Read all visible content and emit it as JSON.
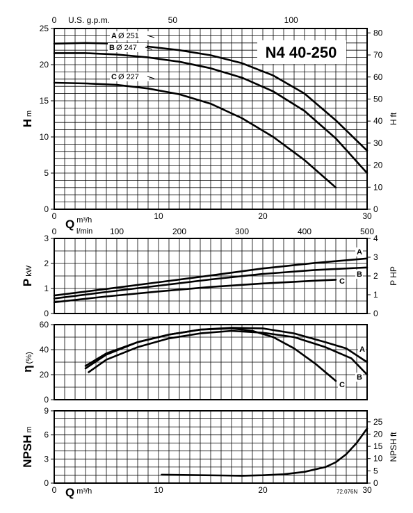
{
  "chart_data": [
    {
      "type": "line",
      "title": "N4 40-250",
      "ylabel": "H",
      "yunit": "m",
      "y2label": "H",
      "y2unit": "ft",
      "xlabel_top": "U.S. g.p.m.",
      "xlabel": "Q",
      "xunit": "m³/h",
      "xlim": [
        0,
        30
      ],
      "ylim": [
        0,
        25
      ],
      "y2lim": [
        0,
        82
      ],
      "x_ticks": [
        "0",
        "10",
        "20",
        "30"
      ],
      "y_ticks": [
        "0",
        "5",
        "10",
        "15",
        "20",
        "25"
      ],
      "y2_ticks": [
        "0",
        "10",
        "20",
        "30",
        "40",
        "50",
        "60",
        "70",
        "80"
      ],
      "x_top_ticks": [
        "50",
        "100"
      ],
      "grid": true,
      "series": [
        {
          "name": "A Ø 251",
          "label": "A",
          "diameter": "Ø 251",
          "x": [
            0,
            3,
            6,
            9,
            12,
            15,
            18,
            21,
            24,
            27,
            30
          ],
          "values": [
            22.9,
            23.0,
            22.9,
            22.5,
            22.0,
            21.3,
            20.2,
            18.5,
            16.0,
            12.3,
            8.1
          ]
        },
        {
          "name": "B Ø 247",
          "label": "B",
          "diameter": "Ø 247",
          "x": [
            0,
            3,
            6,
            9,
            12,
            15,
            18,
            21,
            24,
            27,
            30
          ],
          "values": [
            21.6,
            21.6,
            21.4,
            21.0,
            20.4,
            19.5,
            18.2,
            16.3,
            13.6,
            9.8,
            5.0
          ]
        },
        {
          "name": "C Ø 227",
          "label": "C",
          "diameter": "Ø 227",
          "x": [
            0,
            3,
            6,
            9,
            12,
            15,
            18,
            21,
            24,
            27
          ],
          "values": [
            17.5,
            17.4,
            17.2,
            16.7,
            15.9,
            14.6,
            12.6,
            10.0,
            6.8,
            3.0
          ]
        }
      ]
    },
    {
      "type": "line",
      "ylabel": "P",
      "yunit": "kW",
      "y2label": "P",
      "y2unit": "HP",
      "xlabel": "Q",
      "xunit": "l/min",
      "xlim": [
        0,
        500
      ],
      "ylim": [
        0,
        3
      ],
      "y2lim": [
        0,
        4
      ],
      "x_ticks": [
        "0",
        "100",
        "200",
        "300",
        "400",
        "500"
      ],
      "y_ticks": [
        "0",
        "1",
        "2",
        "3"
      ],
      "y2_ticks": [
        "0",
        "1",
        "2",
        "3",
        "4"
      ],
      "grid": true,
      "series": [
        {
          "name": "A",
          "x": [
            0,
            5,
            10,
            15,
            20,
            25,
            30
          ],
          "values": [
            0.72,
            0.98,
            1.25,
            1.52,
            1.8,
            2.02,
            2.2
          ]
        },
        {
          "name": "B",
          "x": [
            0,
            5,
            10,
            15,
            20,
            25,
            30
          ],
          "values": [
            0.6,
            0.86,
            1.11,
            1.36,
            1.58,
            1.74,
            1.84
          ]
        },
        {
          "name": "C",
          "x": [
            0,
            5,
            10,
            15,
            20,
            25,
            27
          ],
          "values": [
            0.45,
            0.68,
            0.88,
            1.06,
            1.2,
            1.31,
            1.35
          ]
        }
      ]
    },
    {
      "type": "line",
      "ylabel": "η",
      "yunit": "(%)",
      "ylim": [
        0,
        60
      ],
      "xlim": [
        0,
        30
      ],
      "y_ticks": [
        "0",
        "20",
        "40",
        "60"
      ],
      "grid": true,
      "series": [
        {
          "name": "A",
          "x": [
            3,
            5,
            8,
            11,
            14,
            17,
            20,
            23,
            26,
            28,
            30
          ],
          "values": [
            27,
            37,
            46,
            52,
            56,
            57.5,
            57,
            53,
            46,
            41,
            30
          ]
        },
        {
          "name": "B",
          "x": [
            3.3,
            5,
            8,
            11,
            14,
            17,
            20,
            23,
            26,
            28.5,
            30
          ],
          "values": [
            22,
            32,
            42,
            49,
            53,
            55,
            53.5,
            50,
            42,
            33,
            20
          ]
        },
        {
          "name": "C",
          "x": [
            3,
            5,
            8,
            11,
            14,
            17,
            19,
            21,
            23,
            25,
            27
          ],
          "values": [
            25,
            36,
            46,
            52,
            56,
            57,
            55,
            50,
            41,
            29,
            15
          ]
        }
      ]
    },
    {
      "type": "line",
      "ylabel": "NPSH",
      "yunit": "m",
      "y2label": "NPSH",
      "y2unit": "ft",
      "xlabel": "Q",
      "xunit": "m³/h",
      "xlim": [
        0,
        30
      ],
      "ylim": [
        0,
        9
      ],
      "y2lim": [
        0,
        29.5
      ],
      "x_ticks": [
        "0",
        "10",
        "20",
        "30"
      ],
      "y_ticks": [
        "0",
        "3",
        "6",
        "9"
      ],
      "y2_ticks": [
        "0",
        "5",
        "10",
        "15",
        "20",
        "25"
      ],
      "grid": true,
      "annotation": "72.076N",
      "series": [
        {
          "name": "NPSH",
          "x": [
            10.3,
            13,
            16,
            18,
            20,
            22,
            24,
            26,
            27,
            28,
            29,
            30
          ],
          "values": [
            1.05,
            1.0,
            0.95,
            0.92,
            0.98,
            1.1,
            1.4,
            2.0,
            2.6,
            3.6,
            5.0,
            6.8
          ]
        }
      ]
    }
  ]
}
